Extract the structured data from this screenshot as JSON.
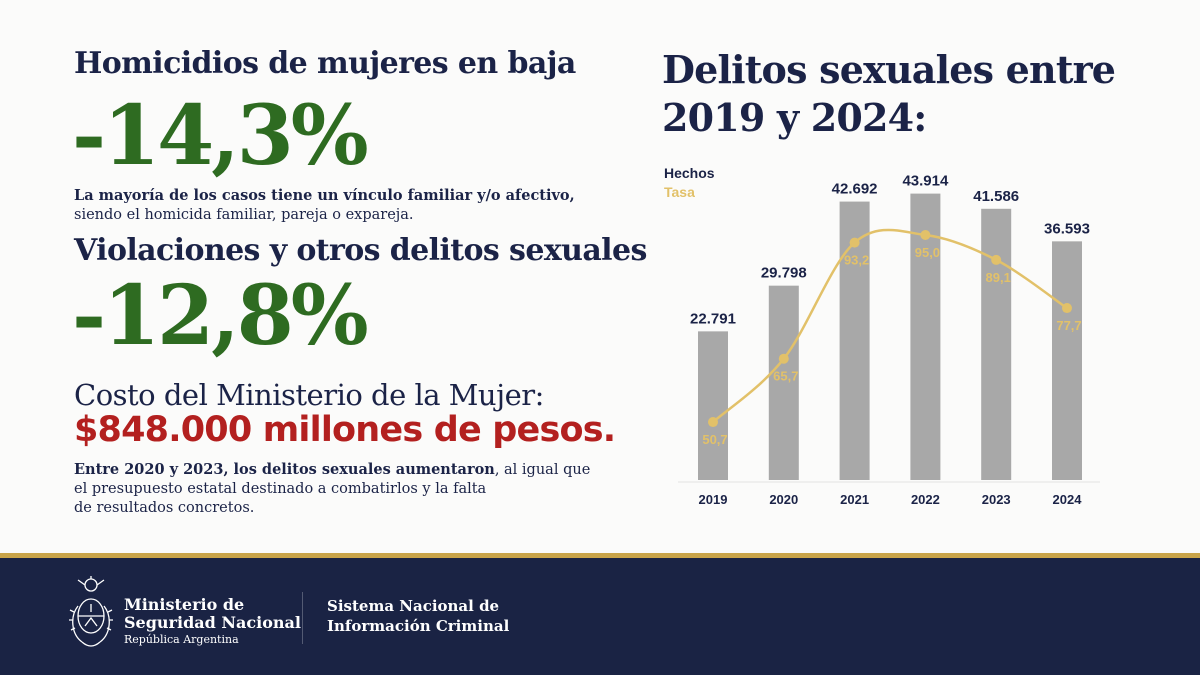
{
  "left": {
    "block1": {
      "title": "Homicidios de mujeres en baja",
      "value": "-14,3%",
      "note_line1": "La mayoría de los casos tiene un vínculo familiar y/o afectivo,",
      "note_line2": "siendo el homicida familiar, pareja o expareja."
    },
    "block2": {
      "title": "Violaciones y otros delitos sexuales",
      "value": "-12,8%"
    },
    "cost": {
      "title": "Costo del Ministerio de la Mujer:",
      "amount": "$848.000 millones de pesos.",
      "note_bold": "Entre 2020 y 2023, los delitos sexuales aumentaron",
      "note_rest": ", al igual que",
      "note_line2": "el presupuesto estatal destinado a combatirlos y la falta",
      "note_line3": "de resultados concretos."
    }
  },
  "chart_title_line1": "Delitos sexuales entre",
  "chart_title_line2": "2019 y 2024:",
  "chart_data": {
    "type": "bar",
    "categories": [
      "2019",
      "2020",
      "2021",
      "2022",
      "2023",
      "2024"
    ],
    "series": [
      {
        "name": "Hechos",
        "type": "bar",
        "values": [
          22791,
          29798,
          42692,
          43914,
          41586,
          36593
        ],
        "labels": [
          "22.791",
          "29.798",
          "42.692",
          "43.914",
          "41.586",
          "36.593"
        ],
        "color": "#a8a8a8"
      },
      {
        "name": "Tasa",
        "type": "line",
        "values": [
          50.7,
          65.7,
          93.2,
          95.0,
          89.1,
          77.7
        ],
        "labels": [
          "50,7",
          "65,7",
          "93,2",
          "95,0",
          "89,1",
          "77,7"
        ],
        "color": "#e2c169"
      }
    ],
    "legend_position": "top-left",
    "grid": false
  },
  "footer": {
    "ministry_line1": "Ministerio de",
    "ministry_line2": "Seguridad Nacional",
    "ministry_line3": "República Argentina",
    "system_line1": "Sistema Nacional de",
    "system_line2": "Información Criminal",
    "emblem_icon": "coat-of-arms-icon",
    "background_color": "#1a2344",
    "accent_color": "#c9a449"
  }
}
